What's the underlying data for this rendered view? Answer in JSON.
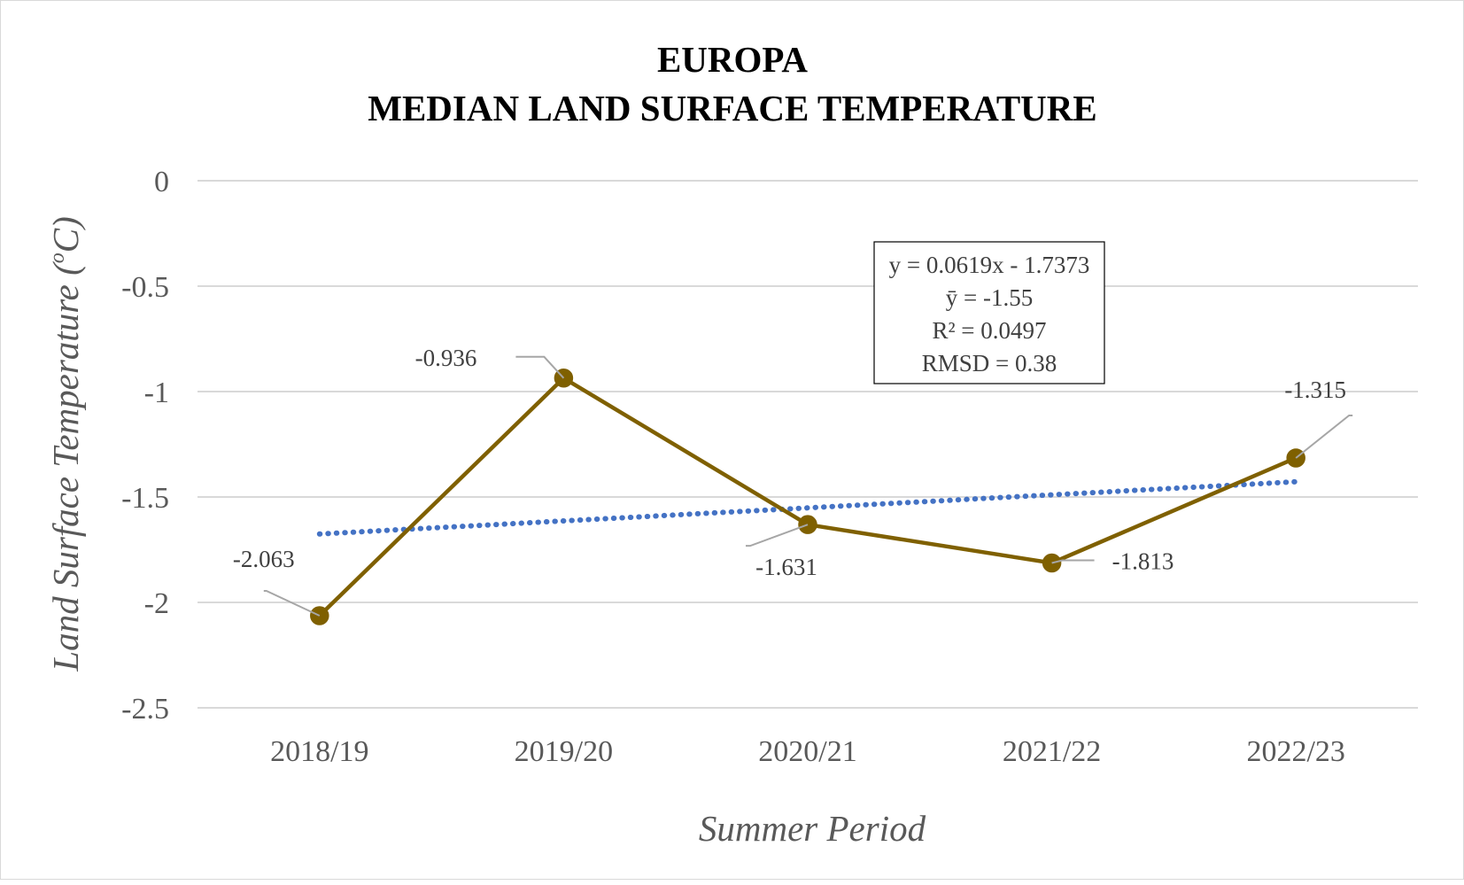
{
  "chart_data": {
    "type": "line",
    "title": "EUROPA",
    "subtitle": "MEDIAN LAND SURFACE TEMPERATURE",
    "xlabel": "Summer Period",
    "ylabel": "Land Surface Temperature (",
    "ylabel_sup": "o",
    "ylabel_tail": "C)",
    "categories": [
      "2018/19",
      "2019/20",
      "2020/21",
      "2021/22",
      "2022/23"
    ],
    "series": [
      {
        "values": [
          -2.063,
          -0.936,
          -1.631,
          -1.813,
          -1.315
        ],
        "color": "#7f6000"
      }
    ],
    "data_labels": [
      "-2.063",
      "-0.936",
      "-1.631",
      "-1.813",
      "-1.315"
    ],
    "trendline": {
      "type": "linear",
      "slope": 0.0619,
      "intercept": -1.7373,
      "color": "#4472c4",
      "style": "dotted"
    },
    "ylim": [
      -2.5,
      0
    ],
    "yticks": [
      0,
      -0.5,
      -1,
      -1.5,
      -2,
      -2.5
    ],
    "ytick_labels": [
      "0",
      "-0.5",
      "-1",
      "-1.5",
      "-2",
      "-2.5"
    ],
    "grid": true,
    "annotations": [
      "y = 0.0619x - 1.7373",
      "ȳ = -1.55",
      "R² = 0.0497",
      "RMSD = 0.38"
    ]
  }
}
